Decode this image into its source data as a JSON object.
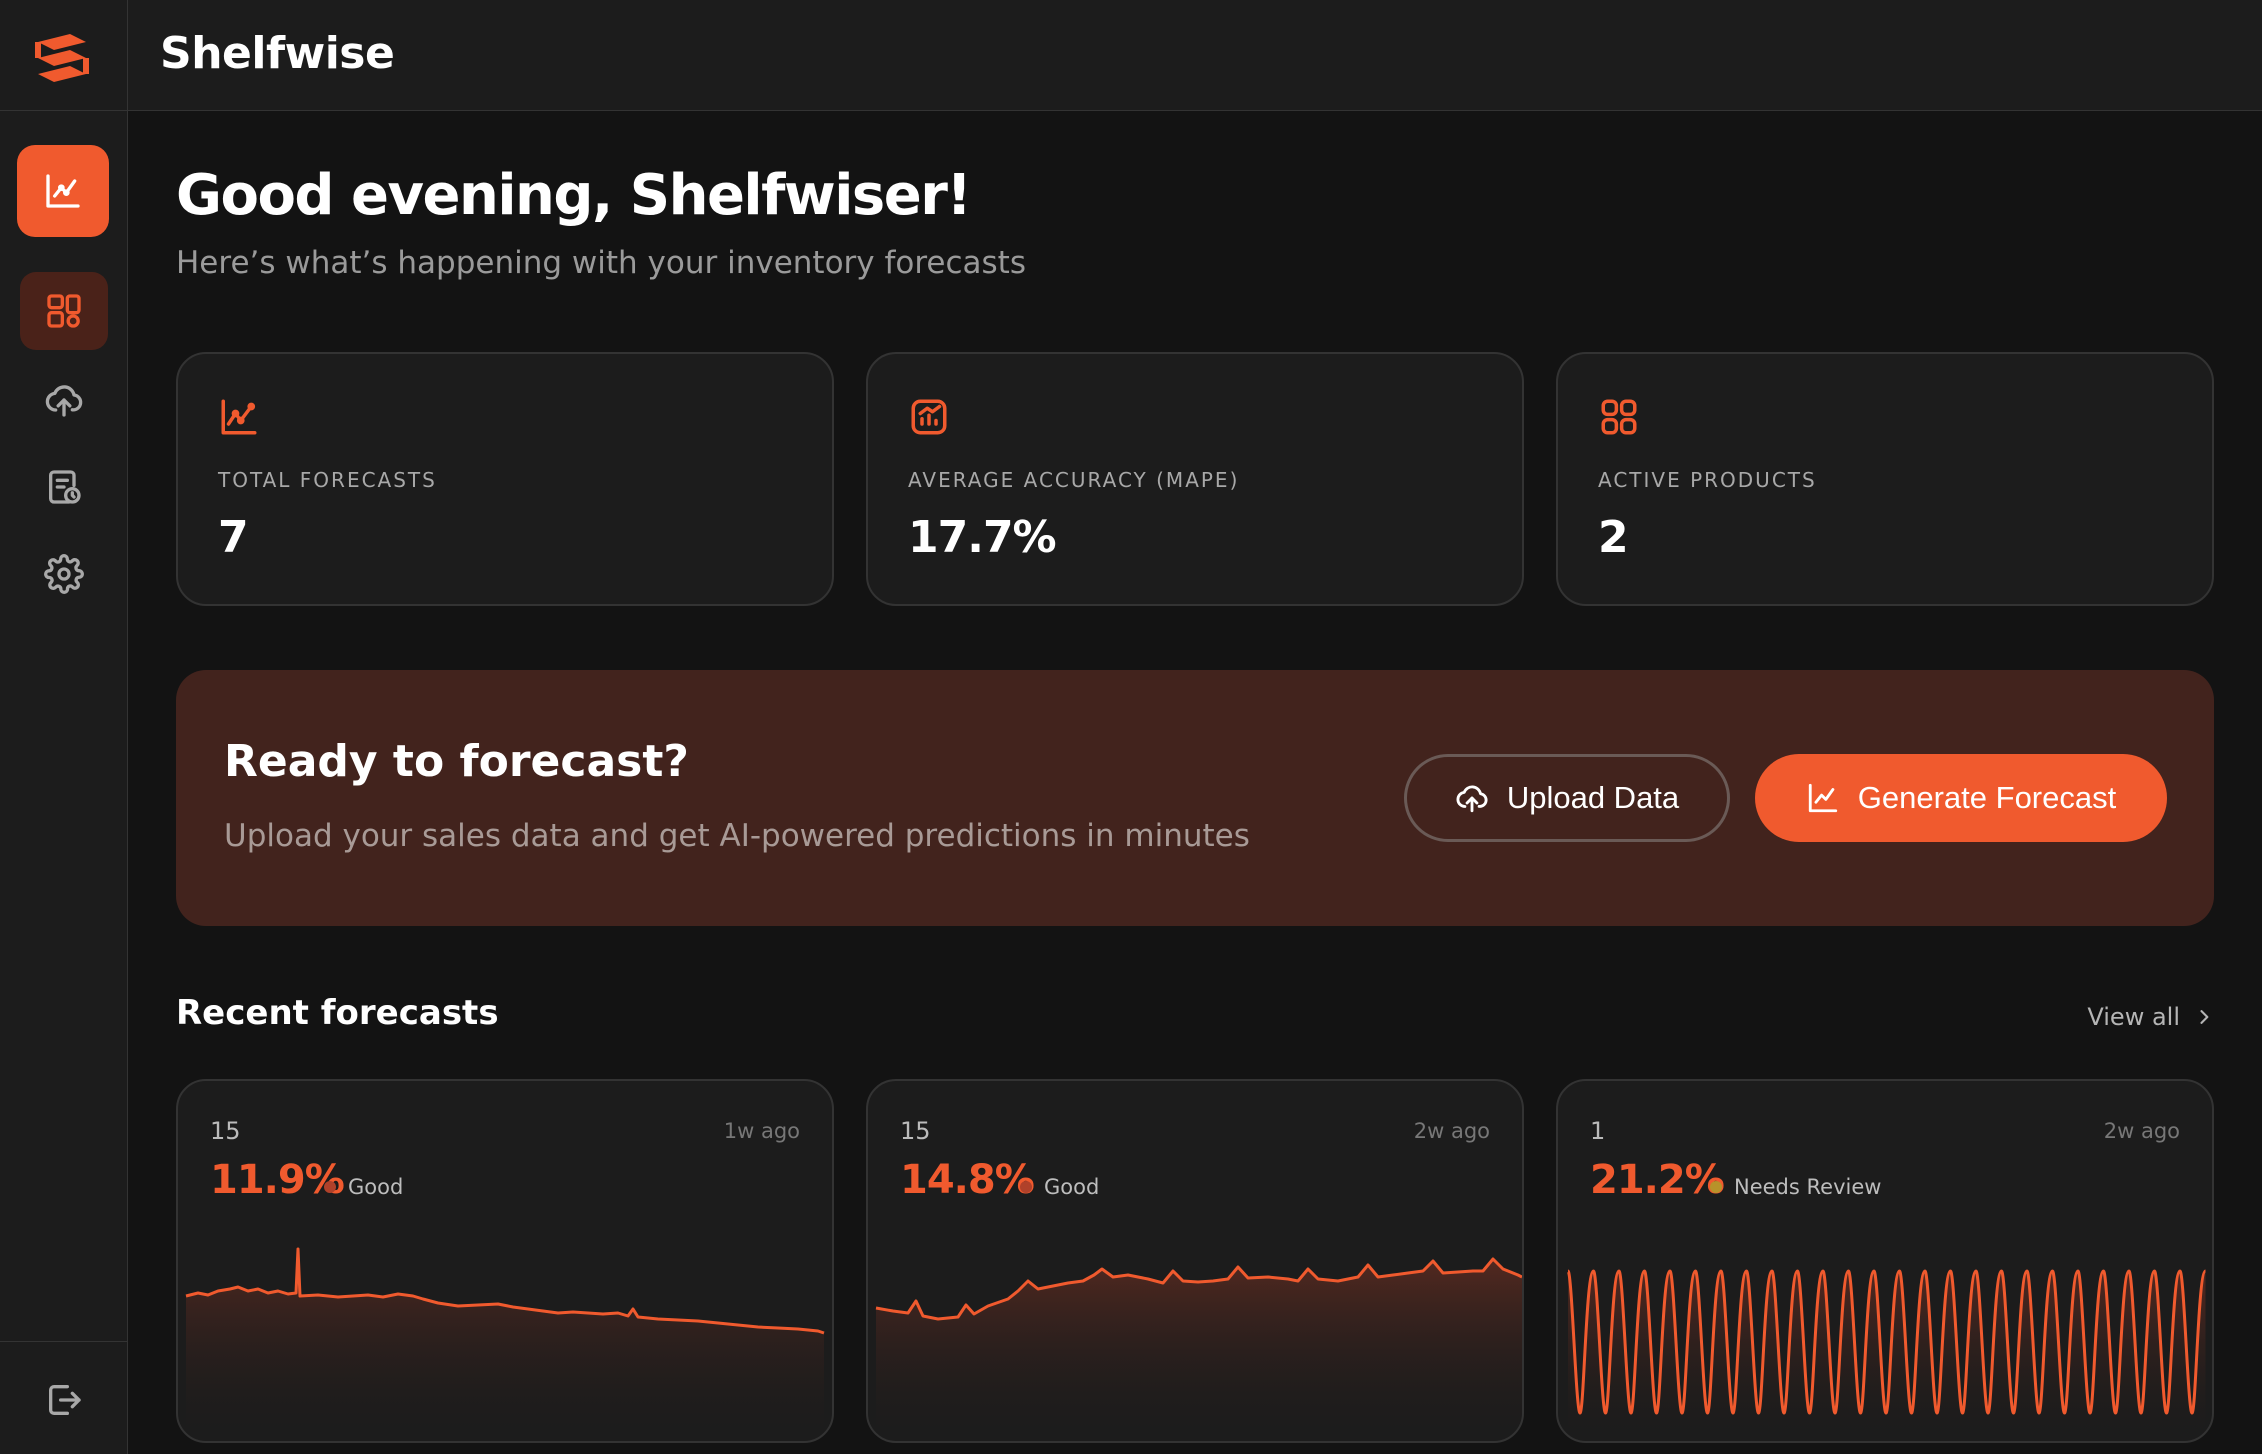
{
  "app": {
    "title": "Shelfwise",
    "logo_icon": "shelfwise-logo-icon",
    "accent": "#f05a2e"
  },
  "sidebar": {
    "items": [
      {
        "id": "analytics",
        "icon": "chart-icon"
      },
      {
        "id": "dashboard",
        "icon": "dashboard-icon",
        "active": true
      },
      {
        "id": "upload",
        "icon": "cloud-upload-icon"
      },
      {
        "id": "history",
        "icon": "document-clock-icon"
      },
      {
        "id": "settings",
        "icon": "gear-icon"
      }
    ],
    "logout_icon": "logout-icon"
  },
  "header": {
    "greeting": "Good evening, Shelfwiser!",
    "subtitle": "Here’s what’s happening with your inventory forecasts"
  },
  "stats": [
    {
      "icon": "trend-chart-icon",
      "label": "TOTAL FORECASTS",
      "value": "7"
    },
    {
      "icon": "chart-box-icon",
      "label": "AVERAGE ACCURACY (MAPE)",
      "value": "17.7%"
    },
    {
      "icon": "grid-icon",
      "label": "ACTIVE PRODUCTS",
      "value": "2"
    }
  ],
  "cta": {
    "title": "Ready to forecast?",
    "subtitle": "Upload your sales data and get AI-powered predictions in minutes",
    "upload_label": "Upload Data",
    "generate_label": "Generate Forecast"
  },
  "recent": {
    "title": "Recent forecasts",
    "view_all": "View all",
    "items": [
      {
        "count": "15",
        "ago": "1w ago",
        "pct": "11.9%",
        "status": "Good",
        "status_color": "#b0412a",
        "trend": "declining"
      },
      {
        "count": "15",
        "ago": "2w ago",
        "pct": "14.8%",
        "status": "Good",
        "status_color": "#b0412a",
        "trend": "rising"
      },
      {
        "count": "1",
        "ago": "2w ago",
        "pct": "21.2%",
        "status": "Needs Review",
        "status_color": "#b8922a",
        "trend": "oscillating"
      }
    ]
  }
}
